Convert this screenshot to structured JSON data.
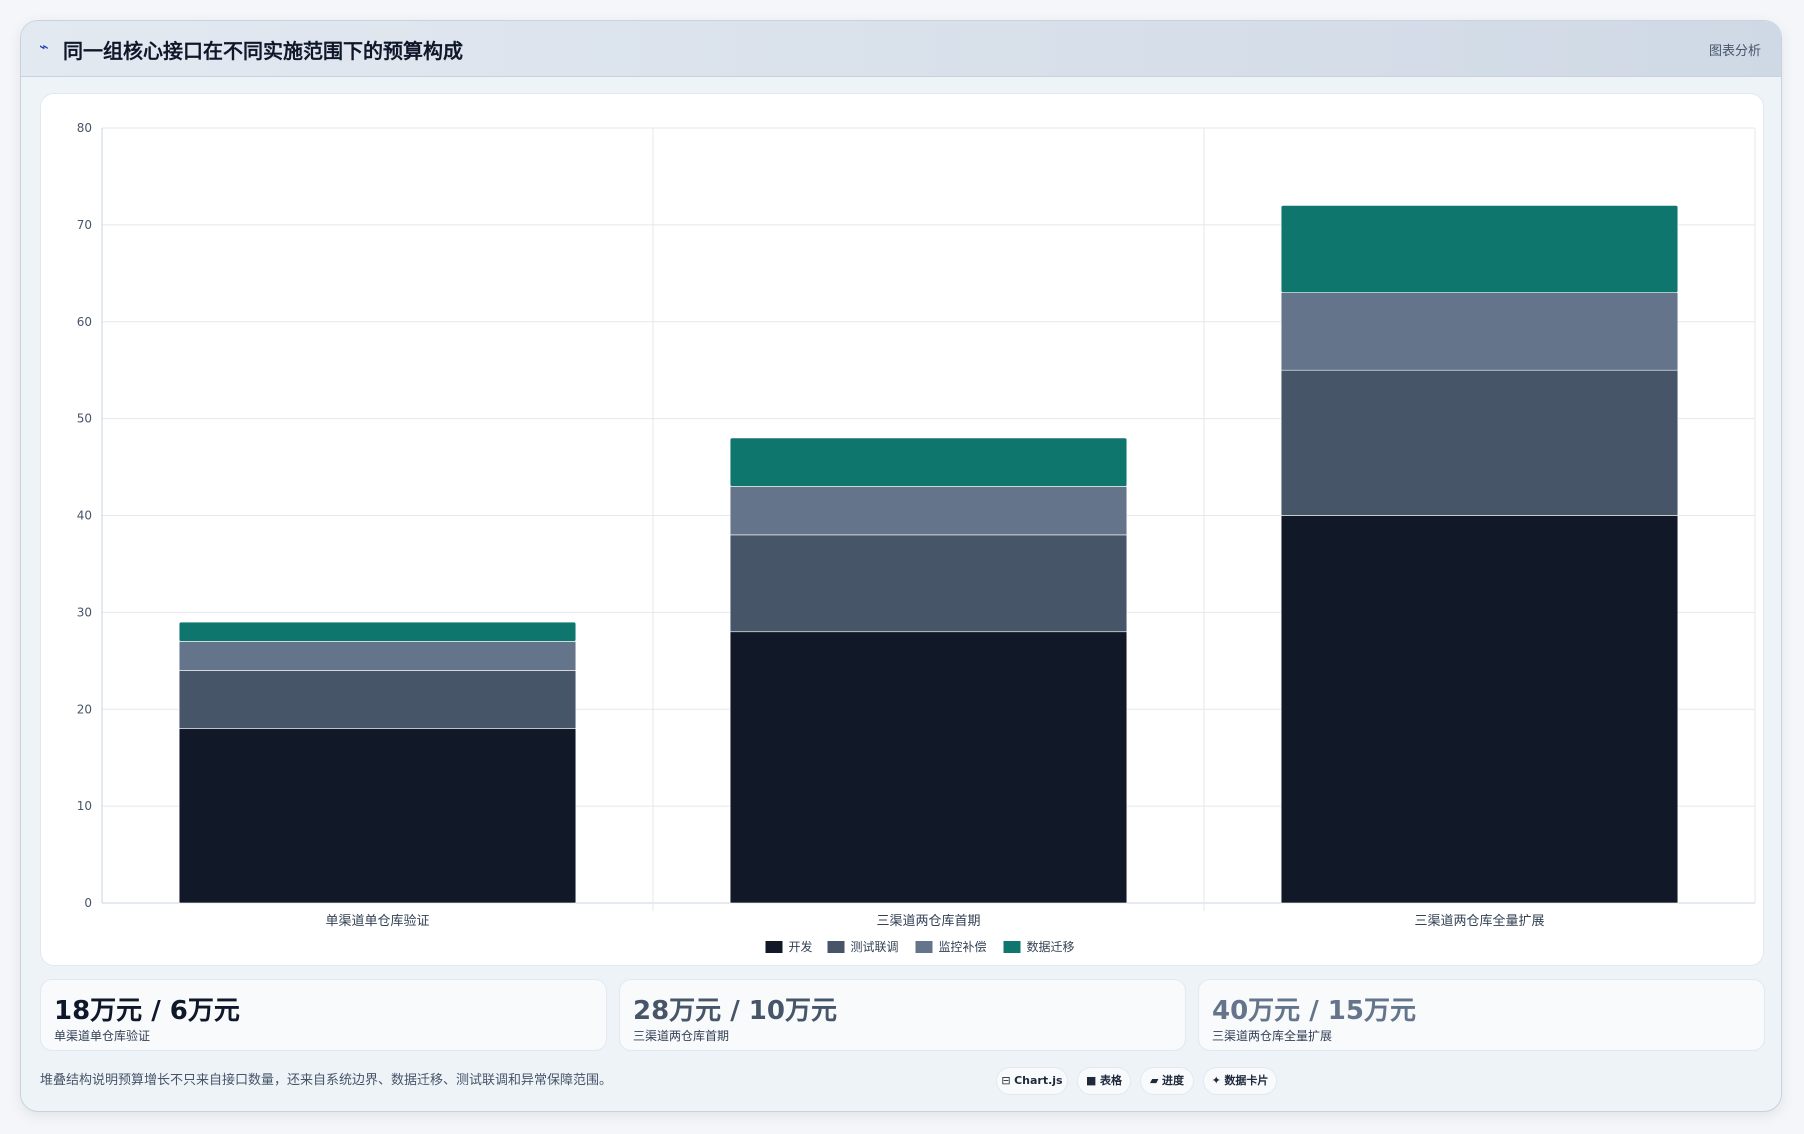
{
  "header": {
    "title": "同一组核心接口在不同实施范围下的预算构成",
    "tag": "图表分析",
    "icon": "trend-line-icon"
  },
  "chart_data": {
    "type": "bar",
    "stacked": true,
    "categories": [
      "单渠道单仓库验证",
      "三渠道两仓库首期",
      "三渠道两仓库全量扩展"
    ],
    "series": [
      {
        "name": "开发",
        "values": [
          18,
          28,
          40
        ],
        "color": "#111827"
      },
      {
        "name": "测试联调",
        "values": [
          6,
          10,
          15
        ],
        "color": "#475569"
      },
      {
        "name": "监控补偿",
        "values": [
          3,
          5,
          8
        ],
        "color": "#64748b"
      },
      {
        "name": "数据迁移",
        "values": [
          2,
          5,
          9
        ],
        "color": "#0f766e"
      }
    ],
    "ylim": [
      0,
      80
    ],
    "yticks": [
      0,
      10,
      20,
      30,
      40,
      50,
      60,
      70,
      80
    ],
    "grid": true,
    "legend": "bottom-center"
  },
  "stats": [
    {
      "value": "18万元 / 6万元",
      "label": "单渠道单仓库验证",
      "color": "#0f172a"
    },
    {
      "value": "28万元 / 10万元",
      "label": "三渠道两仓库首期",
      "color": "#475569"
    },
    {
      "value": "40万元 / 15万元",
      "label": "三渠道两仓库全量扩展",
      "color": "#64748b"
    }
  ],
  "footnote": "堆叠结构说明预算增长不只来自接口数量，还来自系统边界、数据迁移、测试联调和异常保障范围。",
  "chips": [
    {
      "icon": "⊟",
      "label": "Chart.js"
    },
    {
      "icon": "■",
      "label": "表格"
    },
    {
      "icon": "▰",
      "label": "进度"
    },
    {
      "icon": "✦",
      "label": "数据卡片"
    }
  ]
}
